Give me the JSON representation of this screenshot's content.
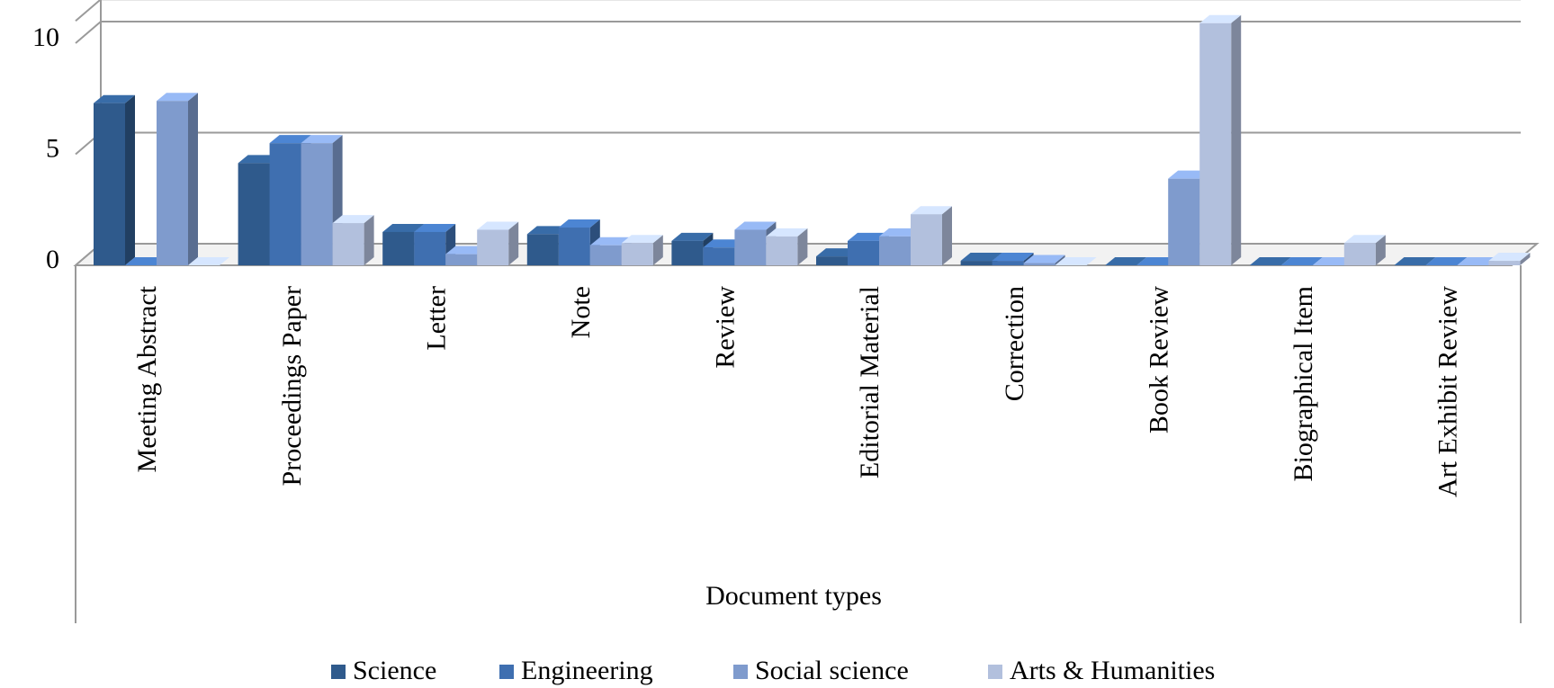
{
  "chart_data": {
    "type": "bar3d",
    "x_label": "Document types",
    "categories": [
      "Meeting Abstract",
      "Proceedings Paper",
      "Letter",
      "Note",
      "Review",
      "Editorial Material",
      "Correction",
      "Book Review",
      "Biographical Item",
      "Art Exhibit Review"
    ],
    "series": [
      {
        "name": "Science",
        "color": "#2f5a8c",
        "values": [
          7.3,
          4.6,
          1.5,
          1.4,
          1.1,
          0.4,
          0.2,
          0,
          0,
          0
        ]
      },
      {
        "name": "Engineering",
        "color": "#3f6fb0",
        "values": [
          0,
          5.5,
          1.5,
          1.7,
          0.8,
          1.1,
          0.2,
          0,
          0,
          0
        ]
      },
      {
        "name": "Social science",
        "color": "#7f9bcd",
        "values": [
          7.4,
          5.5,
          0.5,
          0.9,
          1.6,
          1.3,
          0.1,
          3.9,
          0,
          0
        ]
      },
      {
        "name": "Arts & Humanities",
        "color": "#b2c0dd",
        "values": [
          0,
          1.9,
          1.6,
          1.0,
          1.3,
          2.3,
          0,
          10.9,
          1.0,
          0.2
        ]
      }
    ],
    "ylim": [
      0,
      11
    ],
    "yticks": [
      0,
      5,
      10
    ],
    "grid": true,
    "legend": "bottom"
  }
}
